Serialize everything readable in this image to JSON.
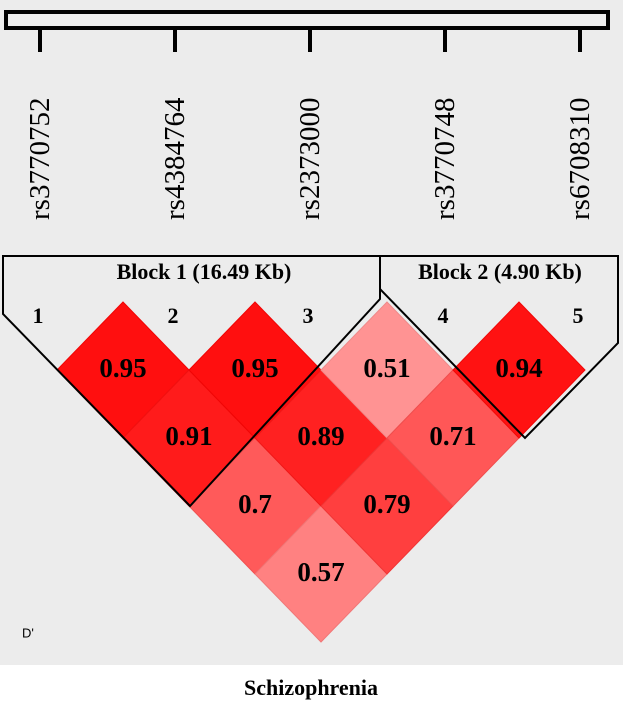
{
  "markers": [
    "rs3770752",
    "rs4384764",
    "rs2373000",
    "rs3770748",
    "rs6708310"
  ],
  "indices": [
    1,
    2,
    3,
    4,
    5
  ],
  "blocks": [
    "Block 1 (16.49 Kb)",
    "Block 2 (4.90 Kb)"
  ],
  "ld": [
    [
      0.95,
      0.91,
      0.7,
      0.57
    ],
    [
      0.95,
      0.89,
      0.79
    ],
    [
      0.51,
      0.71
    ],
    [
      0.94
    ]
  ],
  "legend": "D'",
  "caption": "Schizophrenia"
}
